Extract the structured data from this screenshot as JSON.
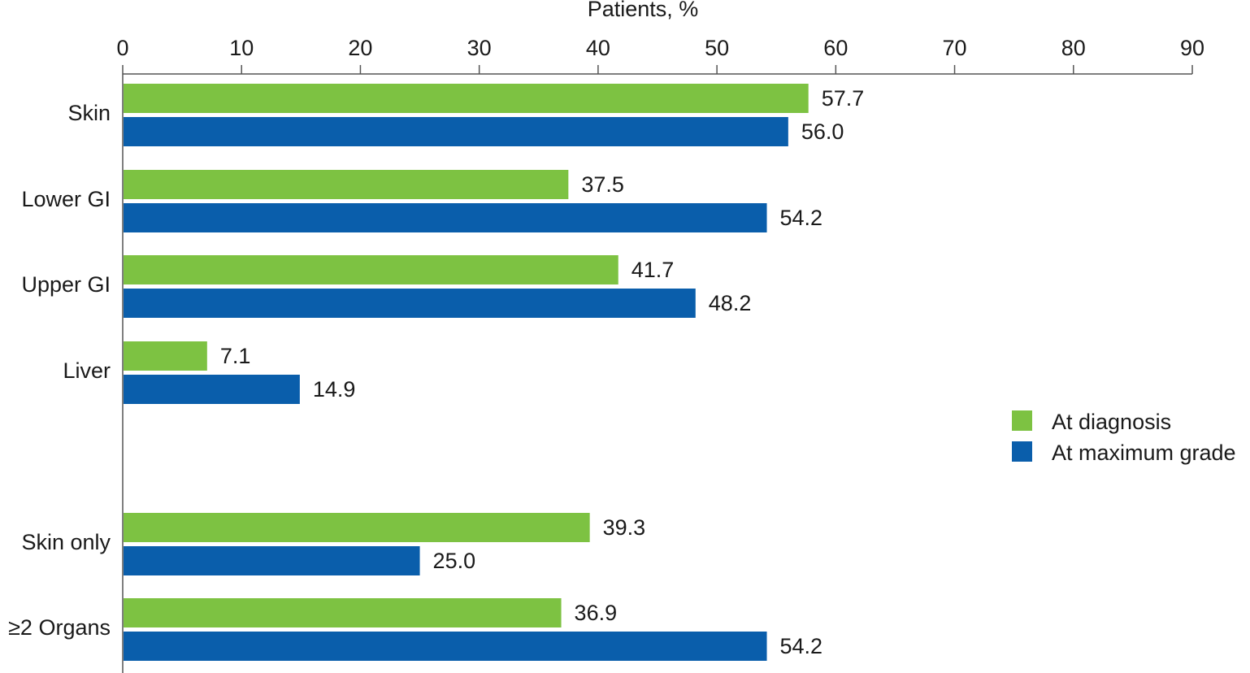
{
  "chart_data": {
    "type": "bar",
    "orientation": "horizontal",
    "title": "",
    "xlabel": "Patients, %",
    "ylabel": "",
    "xlim": [
      0,
      90
    ],
    "xticks": [
      "0",
      "10",
      "20",
      "30",
      "40",
      "50",
      "60",
      "70",
      "80",
      "90"
    ],
    "xaxis_position": "top",
    "grid": false,
    "legend_position": "right",
    "categories": [
      "Skin",
      "Lower GI",
      "Upper GI",
      "Liver",
      "Skin only",
      "≥2 Organs"
    ],
    "series": [
      {
        "name": "At diagnosis",
        "color": "#7dc242",
        "values": [
          57.7,
          37.5,
          41.7,
          7.1,
          39.3,
          36.9
        ],
        "labels": [
          "57.7",
          "37.5",
          "41.7",
          "7.1",
          "39.3",
          "36.9"
        ]
      },
      {
        "name": "At maximum grade",
        "color": "#0a5eab",
        "values": [
          56.0,
          54.2,
          48.2,
          14.9,
          25.0,
          54.2
        ],
        "labels": [
          "56.0",
          "54.2",
          "48.2",
          "14.9",
          "25.0",
          "54.2"
        ]
      }
    ]
  }
}
